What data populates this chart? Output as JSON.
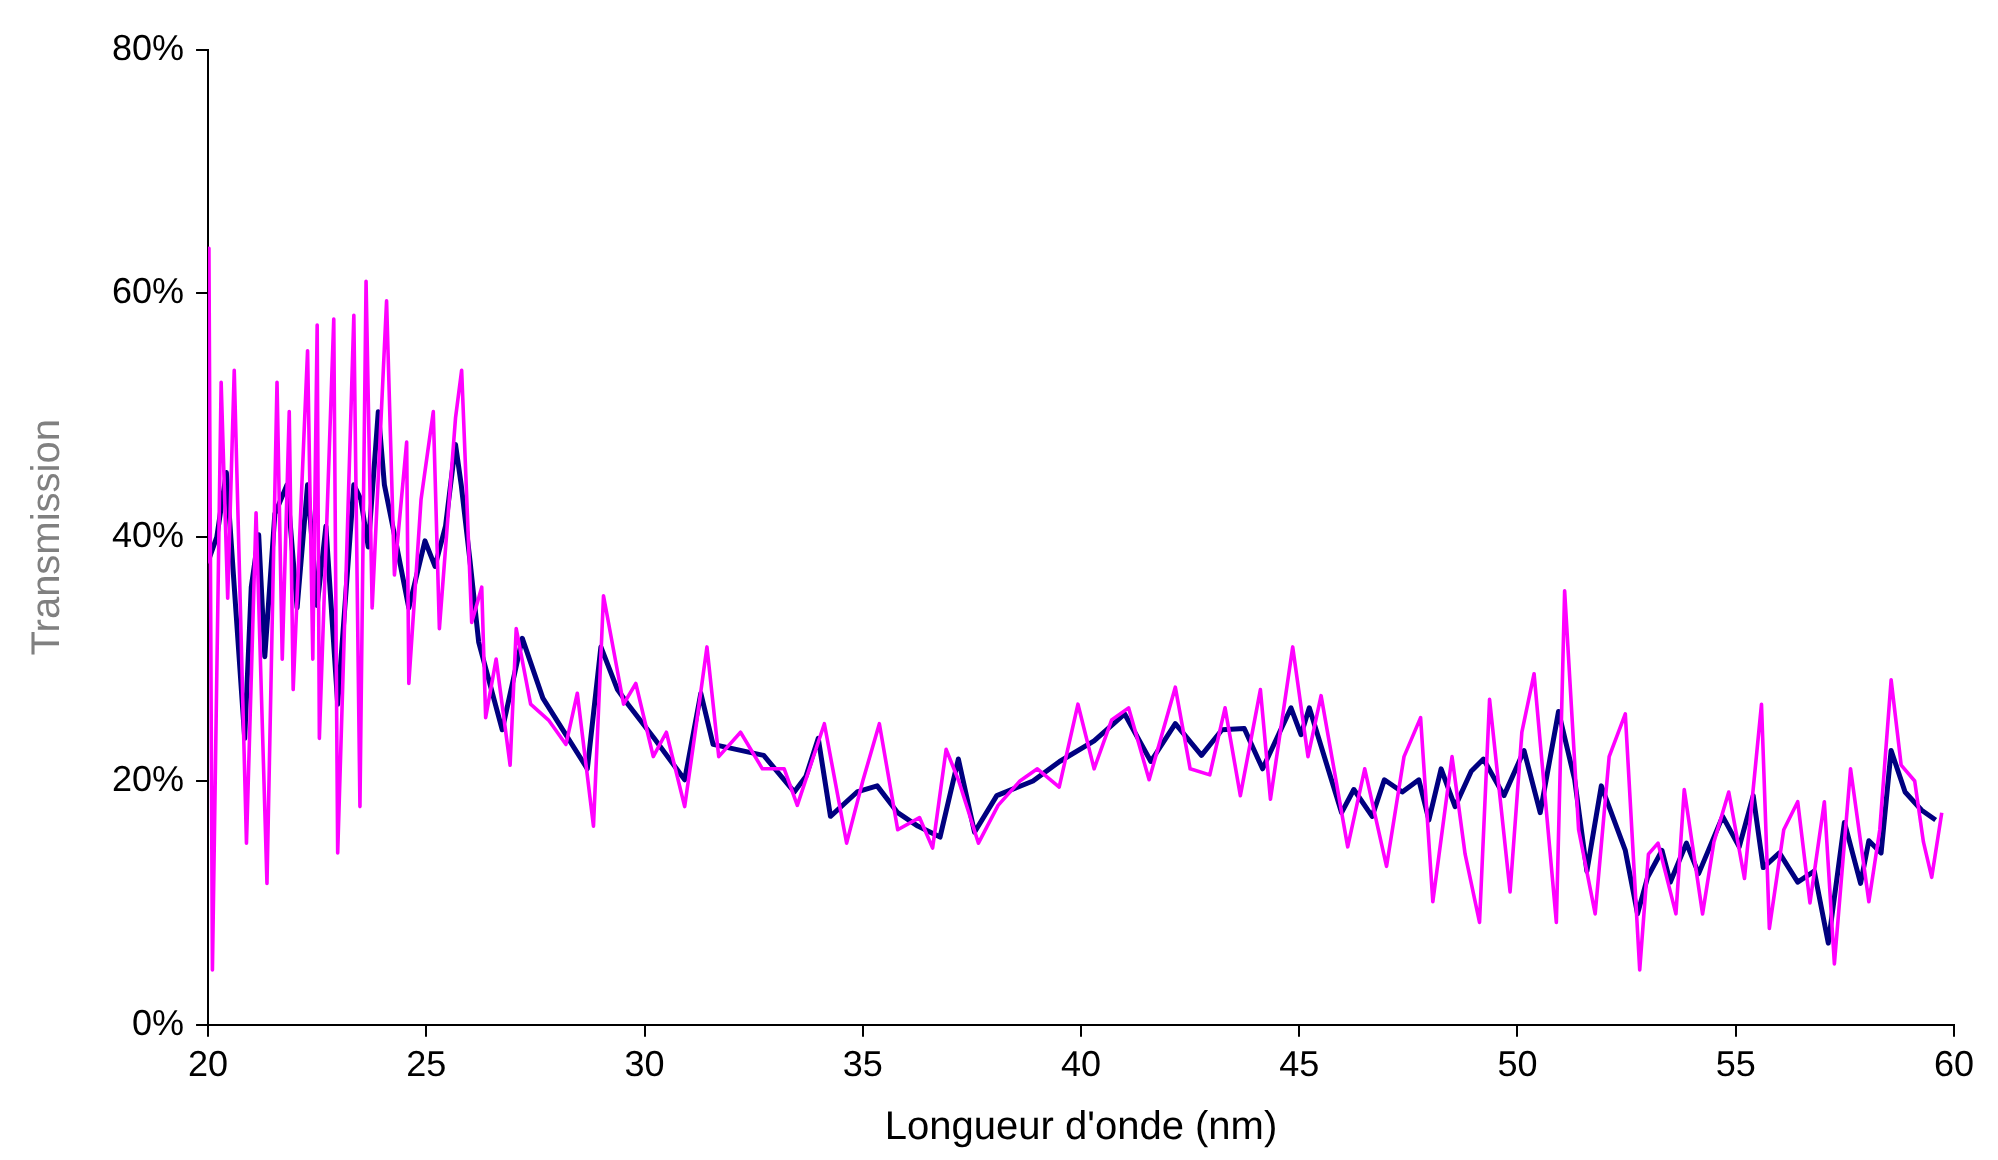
{
  "chart_data": {
    "type": "line",
    "xlabel": "Longueur d'onde (nm)",
    "ylabel": "Transmission",
    "xlim": [
      20,
      60
    ],
    "xticks": [
      20,
      25,
      30,
      35,
      40,
      45,
      50,
      55,
      60
    ],
    "ylim": [
      0,
      80
    ],
    "yticks": [
      {
        "value": 0,
        "label": "0%"
      },
      {
        "value": 20,
        "label": "20%"
      },
      {
        "value": 40,
        "label": "40%"
      },
      {
        "value": 60,
        "label": "60%"
      },
      {
        "value": 80,
        "label": "80%"
      }
    ],
    "grid": false,
    "legend": false,
    "series": [
      {
        "color": "#ff00ff",
        "x": [
          20.0,
          20.02,
          20.1,
          20.3,
          20.45,
          20.6,
          20.88,
          21.1,
          21.35,
          21.58,
          21.7,
          21.86,
          21.95,
          22.28,
          22.4,
          22.5,
          22.55,
          22.88,
          22.97,
          23.34,
          23.48,
          23.62,
          23.76,
          24.09,
          24.27,
          24.55,
          24.6,
          24.88,
          25.16,
          25.3,
          25.67,
          25.81,
          26.04,
          26.27,
          26.36,
          26.6,
          26.92,
          27.06,
          27.39,
          27.8,
          28.2,
          28.46,
          28.83,
          29.06,
          29.52,
          29.8,
          30.2,
          30.5,
          30.92,
          31.2,
          31.43,
          31.7,
          32.2,
          32.7,
          33.2,
          33.5,
          34.12,
          34.63,
          35.0,
          35.38,
          35.8,
          36.3,
          36.6,
          36.91,
          37.2,
          37.65,
          38.1,
          38.6,
          39.0,
          39.5,
          39.93,
          40.3,
          40.7,
          41.09,
          41.56,
          42.16,
          42.5,
          42.95,
          43.3,
          43.65,
          44.11,
          44.34,
          44.85,
          45.2,
          45.5,
          46.11,
          46.5,
          47.0,
          47.4,
          47.78,
          48.06,
          48.5,
          48.8,
          49.13,
          49.36,
          49.83,
          50.1,
          50.38,
          50.89,
          51.08,
          51.4,
          51.78,
          52.1,
          52.47,
          52.8,
          53.0,
          53.22,
          53.63,
          53.82,
          54.24,
          54.5,
          54.84,
          55.2,
          55.59,
          55.77,
          56.1,
          56.42,
          56.7,
          57.03,
          57.26,
          57.63,
          58.05,
          58.3,
          58.56,
          58.79,
          59.1,
          59.3,
          59.49,
          59.72
        ],
        "values": [
          38,
          63.7,
          4.5,
          52.7,
          35,
          53.7,
          14.9,
          42,
          11.6,
          52.7,
          30,
          50.3,
          27.5,
          55.3,
          30,
          57.4,
          23.5,
          57.9,
          14.1,
          58.2,
          17.9,
          61,
          34.2,
          59.4,
          36.9,
          47.8,
          28,
          43.1,
          50.3,
          32.5,
          49.8,
          53.7,
          33,
          35.9,
          25.2,
          30,
          21.3,
          32.5,
          26.3,
          25,
          23,
          27.2,
          16.3,
          35.2,
          26.3,
          28,
          22,
          24,
          17.9,
          25,
          31,
          22,
          24,
          21,
          21,
          18,
          24.7,
          14.9,
          20,
          24.7,
          16,
          17,
          14.5,
          22.6,
          20,
          14.9,
          18,
          20,
          21,
          19.5,
          26.3,
          21,
          25,
          26,
          20.1,
          27.7,
          21,
          20.5,
          26,
          18.8,
          27.5,
          18.5,
          31,
          22,
          27,
          14.6,
          21,
          13,
          22,
          25.2,
          10.1,
          22,
          14,
          8.4,
          26.7,
          10.9,
          24,
          28.8,
          8.4,
          35.6,
          16,
          9.1,
          22,
          25.5,
          4.5,
          14,
          14.9,
          9.1,
          19.3,
          9.1,
          15,
          19.1,
          12,
          26.3,
          7.9,
          16,
          18.3,
          10,
          18.3,
          5,
          21,
          10.1,
          16,
          28.3,
          21.3,
          20,
          15,
          12.1,
          17.4
        ]
      },
      {
        "color": "#000080",
        "x": [
          20.0,
          20.2,
          20.42,
          20.84,
          20.99,
          21.16,
          21.3,
          21.53,
          21.81,
          22.04,
          22.28,
          22.5,
          22.7,
          22.97,
          23.34,
          23.5,
          23.67,
          23.9,
          24.04,
          24.27,
          24.6,
          24.97,
          25.2,
          25.44,
          25.67,
          25.8,
          26.0,
          26.2,
          26.74,
          27.2,
          27.67,
          28.69,
          29.0,
          29.38,
          29.62,
          30.22,
          30.92,
          31.29,
          31.57,
          32.73,
          33.43,
          33.7,
          33.98,
          34.26,
          34.87,
          35.33,
          35.8,
          36.26,
          36.77,
          37.19,
          37.56,
          38.07,
          38.9,
          39.51,
          40.3,
          41.0,
          41.6,
          42.16,
          42.76,
          43.23,
          43.74,
          44.16,
          44.81,
          45.04,
          45.23,
          45.97,
          46.25,
          46.67,
          46.95,
          47.36,
          47.74,
          47.97,
          48.25,
          48.57,
          48.94,
          49.22,
          49.69,
          50.15,
          50.52,
          50.94,
          51.31,
          51.59,
          51.92,
          52.47,
          52.75,
          52.98,
          53.31,
          53.5,
          53.87,
          54.15,
          54.7,
          55.08,
          55.4,
          55.63,
          56.0,
          56.42,
          56.8,
          57.12,
          57.49,
          57.86,
          58.05,
          58.33,
          58.56,
          58.88,
          59.26,
          59.58
        ],
        "values": [
          38,
          40,
          45.3,
          23.5,
          35.9,
          40.2,
          30.2,
          41.9,
          44.3,
          34.2,
          44.3,
          34.4,
          40.9,
          26.3,
          44.3,
          43.1,
          39.2,
          50.3,
          44.3,
          40.2,
          34.2,
          39.7,
          37.6,
          40.9,
          47.6,
          44.3,
          38.1,
          31.4,
          24.2,
          31.7,
          26.8,
          21,
          31,
          27.5,
          26.3,
          23.5,
          20.1,
          27.2,
          23,
          22.1,
          19.1,
          20.4,
          23.5,
          17.1,
          19.1,
          19.6,
          17.4,
          16.3,
          15.4,
          21.8,
          15.8,
          18.8,
          20,
          21.6,
          23.3,
          25.5,
          21.6,
          24.7,
          22.1,
          24.2,
          24.3,
          21,
          26,
          23.8,
          26,
          17.4,
          19.3,
          17.1,
          20.1,
          19.1,
          20.1,
          16.8,
          21,
          17.9,
          20.8,
          21.8,
          18.8,
          22.5,
          17.4,
          25.7,
          20.1,
          12.6,
          19.6,
          14.3,
          9.1,
          12.1,
          14.3,
          11.7,
          14.9,
          12.4,
          17.1,
          14.6,
          18.8,
          12.9,
          14.1,
          11.7,
          12.6,
          6.7,
          16.6,
          11.6,
          15.1,
          14.1,
          22.5,
          19.1,
          17.6,
          16.8
        ]
      }
    ]
  }
}
